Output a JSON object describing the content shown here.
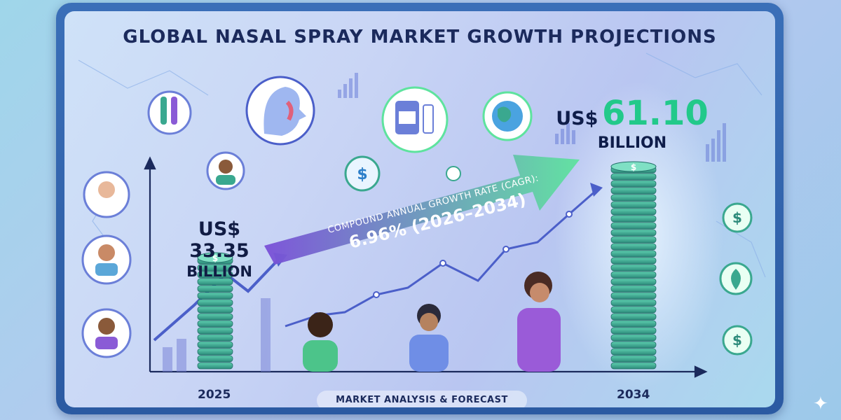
{
  "title": "GLOBAL NASAL SPRAY MARKET GROWTH PROJECTIONS",
  "start": {
    "year": "2025",
    "currency": "US$",
    "amount": "33.35",
    "unit": "BILLION"
  },
  "end": {
    "year": "2034",
    "currency": "US$",
    "amount": "61.10",
    "unit": "BILLION"
  },
  "cagr": {
    "label": "COMPOUND ANNUAL GROWTH RATE (CAGR):",
    "value": "6.96% (2026–2034)"
  },
  "footer": "MARKET ANALYSIS & FORECAST",
  "colors": {
    "title": "#1b2a5c",
    "highlight": "#22c98a",
    "arrow_start": "#7a4fd8",
    "arrow_end": "#5ee39e",
    "trend_line": "#4b5fc9",
    "coin": "#3aa88f"
  },
  "icons": [
    "test-tubes-icon",
    "nasal-anatomy-icon",
    "medicine-bottles-icon",
    "globe-icon",
    "dollar-cycle-icon",
    "dollar-coin-icon",
    "leaf-icon",
    "bar-chart-icon"
  ],
  "chart_data": {
    "type": "bar",
    "categories": [
      "2025",
      "2034"
    ],
    "values": [
      33.35,
      61.1
    ],
    "title": "GLOBAL NASAL SPRAY MARKET GROWTH PROJECTIONS",
    "xlabel": "",
    "ylabel": "",
    "cagr_percent": 6.96,
    "cagr_period": "2026–2034"
  }
}
